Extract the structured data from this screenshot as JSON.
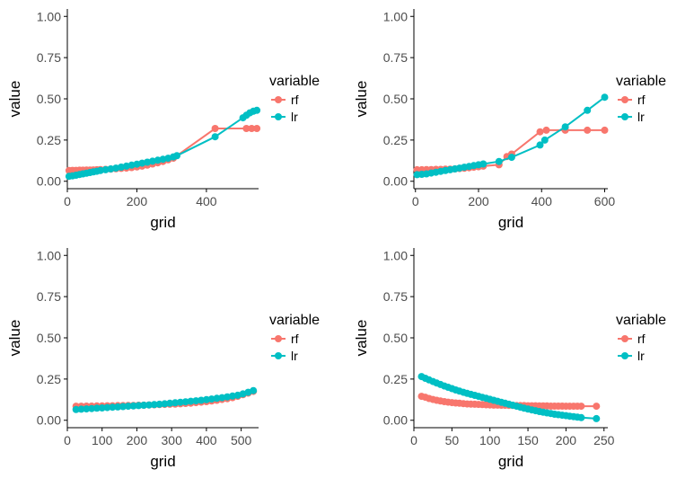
{
  "colors": {
    "rf": "#F8766D",
    "lr": "#00BFC4",
    "axis": "#000000",
    "tick_text": "#4d4d4d"
  },
  "chart_data": [
    {
      "type": "line",
      "xlabel": "grid",
      "ylabel": "value",
      "xlim": [
        0,
        550
      ],
      "ylim": [
        0,
        1
      ],
      "xticks": [
        0,
        200,
        400
      ],
      "xtick_labels": [
        "0",
        "200",
        "400"
      ],
      "yticks": [
        0,
        0.25,
        0.5,
        0.75,
        1
      ],
      "ytick_labels": [
        "0.00",
        "0.25",
        "0.50",
        "0.75",
        "1.00"
      ],
      "grid": false,
      "legend": {
        "title": "variable",
        "position": "right"
      },
      "series": [
        {
          "name": "rf",
          "color": "#F8766D",
          "x": [
            5,
            15,
            25,
            35,
            45,
            55,
            65,
            75,
            85,
            95,
            110,
            125,
            140,
            155,
            170,
            185,
            200,
            215,
            230,
            245,
            260,
            275,
            290,
            305,
            425,
            515,
            530,
            545
          ],
          "y": [
            0.065,
            0.066,
            0.066,
            0.067,
            0.067,
            0.068,
            0.068,
            0.069,
            0.07,
            0.071,
            0.072,
            0.074,
            0.076,
            0.078,
            0.08,
            0.083,
            0.087,
            0.092,
            0.098,
            0.105,
            0.112,
            0.12,
            0.13,
            0.14,
            0.32,
            0.32,
            0.32,
            0.32
          ]
        },
        {
          "name": "lr",
          "color": "#00BFC4",
          "x": [
            5,
            15,
            25,
            35,
            45,
            55,
            65,
            75,
            85,
            95,
            110,
            125,
            140,
            155,
            170,
            185,
            200,
            215,
            230,
            245,
            260,
            275,
            290,
            305,
            315,
            425,
            505,
            515,
            525,
            535,
            545
          ],
          "y": [
            0.03,
            0.033,
            0.037,
            0.041,
            0.045,
            0.049,
            0.053,
            0.057,
            0.061,
            0.065,
            0.07,
            0.075,
            0.08,
            0.086,
            0.092,
            0.098,
            0.104,
            0.11,
            0.116,
            0.122,
            0.128,
            0.134,
            0.14,
            0.148,
            0.155,
            0.27,
            0.385,
            0.4,
            0.415,
            0.425,
            0.43
          ]
        }
      ]
    },
    {
      "type": "line",
      "xlabel": "grid",
      "ylabel": "value",
      "xlim": [
        -5,
        610
      ],
      "ylim": [
        0,
        1
      ],
      "xticks": [
        0,
        200,
        400,
        600
      ],
      "xtick_labels": [
        "0",
        "200",
        "400",
        "600"
      ],
      "yticks": [
        0,
        0.25,
        0.5,
        0.75,
        1
      ],
      "ytick_labels": [
        "0.00",
        "0.25",
        "0.50",
        "0.75",
        "1.00"
      ],
      "grid": false,
      "legend": {
        "title": "variable",
        "position": "right"
      },
      "series": [
        {
          "name": "rf",
          "color": "#F8766D",
          "x": [
            5,
            20,
            35,
            50,
            65,
            80,
            95,
            110,
            125,
            140,
            155,
            170,
            185,
            200,
            215,
            265,
            290,
            305,
            395,
            415,
            475,
            545,
            600
          ],
          "y": [
            0.07,
            0.07,
            0.071,
            0.071,
            0.072,
            0.072,
            0.073,
            0.074,
            0.075,
            0.077,
            0.079,
            0.082,
            0.085,
            0.088,
            0.092,
            0.1,
            0.15,
            0.165,
            0.3,
            0.31,
            0.31,
            0.31,
            0.31
          ]
        },
        {
          "name": "lr",
          "color": "#00BFC4",
          "x": [
            5,
            20,
            35,
            50,
            65,
            80,
            95,
            110,
            125,
            140,
            155,
            170,
            185,
            200,
            215,
            265,
            305,
            395,
            410,
            475,
            545,
            600
          ],
          "y": [
            0.04,
            0.042,
            0.045,
            0.05,
            0.055,
            0.06,
            0.065,
            0.07,
            0.075,
            0.08,
            0.085,
            0.09,
            0.095,
            0.1,
            0.105,
            0.12,
            0.145,
            0.22,
            0.25,
            0.33,
            0.43,
            0.51
          ]
        }
      ]
    },
    {
      "type": "line",
      "xlabel": "grid",
      "ylabel": "value",
      "xlim": [
        0,
        550
      ],
      "ylim": [
        0,
        1
      ],
      "xticks": [
        0,
        100,
        200,
        300,
        400,
        500
      ],
      "xtick_labels": [
        "0",
        "100",
        "200",
        "300",
        "400",
        "500"
      ],
      "yticks": [
        0,
        0.25,
        0.5,
        0.75,
        1
      ],
      "ytick_labels": [
        "0.00",
        "0.25",
        "0.50",
        "0.75",
        "1.00"
      ],
      "grid": false,
      "legend": {
        "title": "variable",
        "position": "right"
      },
      "series": [
        {
          "name": "rf",
          "color": "#F8766D",
          "x": [
            25,
            40,
            55,
            70,
            85,
            100,
            115,
            130,
            145,
            160,
            175,
            190,
            205,
            220,
            235,
            250,
            265,
            280,
            295,
            310,
            325,
            340,
            355,
            370,
            385,
            400,
            415,
            430,
            445,
            460,
            475,
            490,
            505,
            520,
            535
          ],
          "y": [
            0.085,
            0.085,
            0.086,
            0.086,
            0.087,
            0.087,
            0.088,
            0.088,
            0.089,
            0.089,
            0.09,
            0.09,
            0.091,
            0.092,
            0.093,
            0.094,
            0.095,
            0.096,
            0.097,
            0.098,
            0.1,
            0.102,
            0.104,
            0.107,
            0.11,
            0.113,
            0.117,
            0.121,
            0.126,
            0.131,
            0.137,
            0.145,
            0.155,
            0.165,
            0.175
          ]
        },
        {
          "name": "lr",
          "color": "#00BFC4",
          "x": [
            25,
            40,
            55,
            70,
            85,
            100,
            115,
            130,
            145,
            160,
            175,
            190,
            205,
            220,
            235,
            250,
            265,
            280,
            295,
            310,
            325,
            340,
            355,
            370,
            385,
            400,
            415,
            430,
            445,
            460,
            475,
            490,
            505,
            520,
            535
          ],
          "y": [
            0.065,
            0.067,
            0.069,
            0.071,
            0.073,
            0.075,
            0.077,
            0.079,
            0.081,
            0.083,
            0.085,
            0.087,
            0.089,
            0.091,
            0.093,
            0.095,
            0.097,
            0.1,
            0.103,
            0.106,
            0.109,
            0.112,
            0.115,
            0.118,
            0.121,
            0.125,
            0.129,
            0.133,
            0.137,
            0.142,
            0.147,
            0.152,
            0.16,
            0.17,
            0.18
          ]
        }
      ]
    },
    {
      "type": "line",
      "xlabel": "grid",
      "ylabel": "value",
      "xlim": [
        0,
        255
      ],
      "ylim": [
        0,
        1
      ],
      "xticks": [
        0,
        50,
        100,
        150,
        200,
        250
      ],
      "xtick_labels": [
        "0",
        "50",
        "100",
        "150",
        "200",
        "250"
      ],
      "yticks": [
        0,
        0.25,
        0.5,
        0.75,
        1
      ],
      "ytick_labels": [
        "0.00",
        "0.25",
        "0.50",
        "0.75",
        "1.00"
      ],
      "grid": false,
      "legend": {
        "title": "variable",
        "position": "right"
      },
      "series": [
        {
          "name": "rf",
          "color": "#F8766D",
          "x": [
            10,
            15,
            20,
            25,
            30,
            35,
            40,
            45,
            50,
            55,
            60,
            65,
            70,
            75,
            80,
            85,
            90,
            95,
            100,
            105,
            110,
            115,
            120,
            125,
            130,
            135,
            140,
            145,
            150,
            155,
            160,
            165,
            170,
            175,
            180,
            185,
            190,
            195,
            200,
            205,
            210,
            215,
            220,
            240
          ],
          "y": [
            0.145,
            0.14,
            0.132,
            0.126,
            0.121,
            0.117,
            0.113,
            0.11,
            0.107,
            0.105,
            0.103,
            0.101,
            0.099,
            0.098,
            0.097,
            0.096,
            0.095,
            0.094,
            0.093,
            0.092,
            0.092,
            0.091,
            0.091,
            0.09,
            0.09,
            0.089,
            0.089,
            0.089,
            0.088,
            0.088,
            0.088,
            0.087,
            0.087,
            0.087,
            0.086,
            0.086,
            0.086,
            0.086,
            0.085,
            0.085,
            0.085,
            0.085,
            0.085,
            0.085
          ]
        },
        {
          "name": "lr",
          "color": "#00BFC4",
          "x": [
            10,
            15,
            20,
            25,
            30,
            35,
            40,
            45,
            50,
            55,
            60,
            65,
            70,
            75,
            80,
            85,
            90,
            95,
            100,
            105,
            110,
            115,
            120,
            125,
            130,
            135,
            140,
            145,
            150,
            155,
            160,
            165,
            170,
            175,
            180,
            185,
            190,
            195,
            200,
            205,
            210,
            215,
            220,
            240
          ],
          "y": [
            0.265,
            0.255,
            0.245,
            0.235,
            0.226,
            0.217,
            0.208,
            0.2,
            0.192,
            0.184,
            0.177,
            0.17,
            0.163,
            0.157,
            0.151,
            0.145,
            0.139,
            0.133,
            0.127,
            0.121,
            0.115,
            0.109,
            0.103,
            0.097,
            0.091,
            0.085,
            0.079,
            0.073,
            0.068,
            0.063,
            0.058,
            0.053,
            0.049,
            0.045,
            0.041,
            0.037,
            0.034,
            0.031,
            0.028,
            0.025,
            0.022,
            0.019,
            0.016,
            0.01
          ]
        }
      ]
    }
  ]
}
